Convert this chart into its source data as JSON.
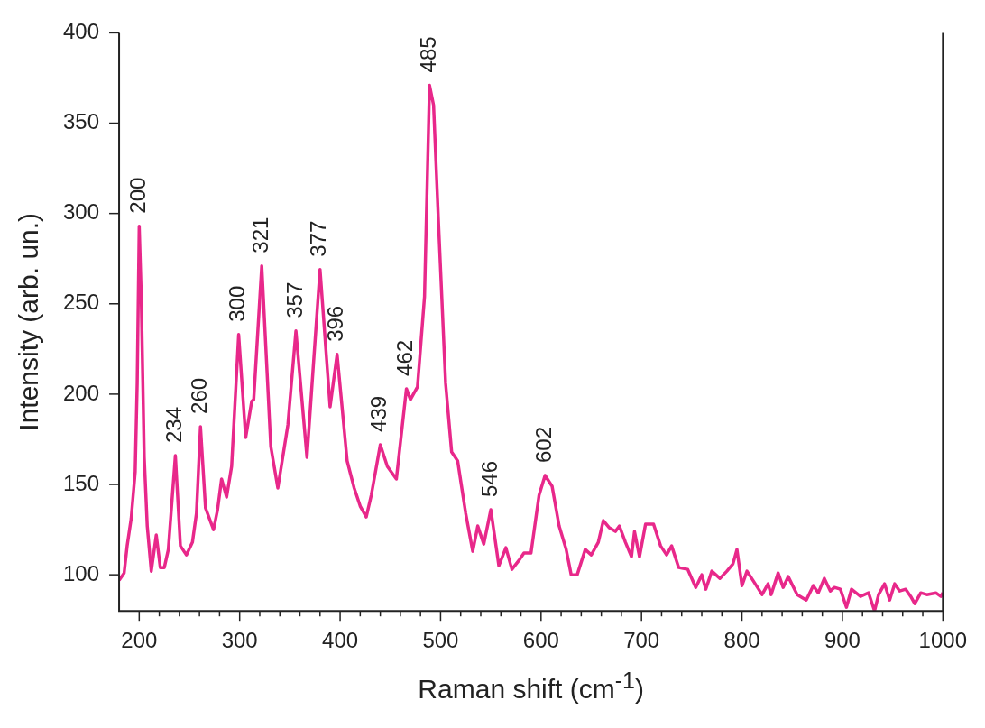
{
  "chart_data": {
    "type": "line",
    "xlabel": "Raman shift (cm$^{-1}$)",
    "ylabel": "Intensity (arb. un.)",
    "xlim": [
      180,
      1000
    ],
    "ylim": [
      80,
      400
    ],
    "xticks": [
      {
        "value": 200,
        "label": "200"
      },
      {
        "value": 220,
        "label": null
      },
      {
        "value": 240,
        "label": null
      },
      {
        "value": 260,
        "label": null
      },
      {
        "value": 280,
        "label": null
      },
      {
        "value": 300,
        "label": "300"
      },
      {
        "value": 320,
        "label": null
      },
      {
        "value": 340,
        "label": null
      },
      {
        "value": 360,
        "label": null
      },
      {
        "value": 380,
        "label": null
      },
      {
        "value": 400,
        "label": "400"
      },
      {
        "value": 420,
        "label": null
      },
      {
        "value": 440,
        "label": null
      },
      {
        "value": 460,
        "label": null
      },
      {
        "value": 480,
        "label": null
      },
      {
        "value": 500,
        "label": "500"
      },
      {
        "value": 520,
        "label": null
      },
      {
        "value": 540,
        "label": null
      },
      {
        "value": 560,
        "label": null
      },
      {
        "value": 580,
        "label": null
      },
      {
        "value": 600,
        "label": "600"
      },
      {
        "value": 620,
        "label": null
      },
      {
        "value": 640,
        "label": null
      },
      {
        "value": 660,
        "label": null
      },
      {
        "value": 680,
        "label": null
      },
      {
        "value": 700,
        "label": "700"
      },
      {
        "value": 720,
        "label": null
      },
      {
        "value": 740,
        "label": null
      },
      {
        "value": 760,
        "label": null
      },
      {
        "value": 780,
        "label": null
      },
      {
        "value": 800,
        "label": "800"
      },
      {
        "value": 820,
        "label": null
      },
      {
        "value": 840,
        "label": null
      },
      {
        "value": 860,
        "label": null
      },
      {
        "value": 880,
        "label": null
      },
      {
        "value": 900,
        "label": "900"
      },
      {
        "value": 920,
        "label": null
      },
      {
        "value": 940,
        "label": null
      },
      {
        "value": 960,
        "label": null
      },
      {
        "value": 980,
        "label": null
      },
      {
        "value": 1000,
        "label": "1000"
      }
    ],
    "yticks": [
      100,
      150,
      200,
      250,
      300,
      350,
      400
    ],
    "grid": false,
    "legend": false,
    "marker": "none",
    "line_style": "solid",
    "series": [
      {
        "color": "#e8288a",
        "x": [
          180,
          185,
          188,
          192,
          196,
          198,
          200,
          202,
          205,
          208,
          212,
          217,
          221,
          225,
          229,
          236,
          241,
          247,
          253,
          257,
          261,
          266,
          274,
          278,
          282,
          287,
          292,
          299,
          306,
          312,
          314,
          322,
          331,
          338,
          348,
          356,
          367,
          380,
          390,
          397,
          407,
          414,
          420,
          426,
          431,
          440,
          447,
          456,
          466,
          470,
          477,
          484,
          489,
          493,
          498,
          505,
          511,
          517,
          525,
          532,
          537,
          543,
          550,
          558,
          565,
          571,
          578,
          583,
          590,
          598,
          604,
          611,
          618,
          625,
          630,
          636,
          644,
          650,
          657,
          662,
          668,
          674,
          678,
          684,
          690,
          693,
          698,
          704,
          712,
          719,
          725,
          730,
          737,
          746,
          754,
          760,
          764,
          770,
          778,
          785,
          791,
          795,
          800,
          805,
          812,
          820,
          826,
          829,
          836,
          841,
          846,
          855,
          864,
          871,
          876,
          882,
          888,
          892,
          898,
          904,
          909,
          918,
          926,
          932,
          936,
          942,
          947,
          952,
          957,
          963,
          968,
          972,
          978,
          984,
          993,
          998,
          1000
        ],
        "values": [
          97,
          101,
          116,
          131,
          157,
          206,
          293,
          255,
          165,
          127,
          102,
          122,
          104,
          104,
          114,
          166,
          116,
          111,
          118,
          134,
          182,
          137,
          125,
          136,
          153,
          143,
          160,
          233,
          176,
          196,
          197,
          271,
          171,
          148,
          183,
          235,
          165,
          269,
          193,
          222,
          163,
          148,
          138,
          132,
          144,
          172,
          160,
          153,
          203,
          197,
          204,
          254,
          371,
          360,
          294,
          206,
          168,
          163,
          134,
          113,
          127,
          117,
          136,
          105,
          115,
          103,
          108,
          112,
          112,
          144,
          155,
          149,
          127,
          114,
          100,
          100,
          114,
          111,
          118,
          130,
          126,
          124,
          127,
          118,
          110,
          124,
          110,
          128,
          128,
          116,
          111,
          116,
          104,
          103,
          93,
          100,
          92,
          102,
          98,
          102,
          106,
          114,
          94,
          102,
          96,
          89,
          95,
          89,
          101,
          93,
          99,
          89,
          86,
          94,
          90,
          98,
          91,
          93,
          92,
          82,
          92,
          88,
          90,
          80,
          89,
          95,
          86,
          95,
          91,
          92,
          88,
          84,
          90,
          89,
          90,
          88,
          90
        ]
      }
    ],
    "annotations": [
      {
        "text": "200",
        "x": 200,
        "y": 293
      },
      {
        "text": "234",
        "x": 236,
        "y": 166
      },
      {
        "text": "260",
        "x": 261,
        "y": 182
      },
      {
        "text": "300",
        "x": 299,
        "y": 233
      },
      {
        "text": "321",
        "x": 322,
        "y": 271
      },
      {
        "text": "357",
        "x": 356,
        "y": 235
      },
      {
        "text": "377",
        "x": 380,
        "y": 269
      },
      {
        "text": "396",
        "x": 397,
        "y": 222
      },
      {
        "text": "439",
        "x": 440,
        "y": 172
      },
      {
        "text": "462",
        "x": 466,
        "y": 203
      },
      {
        "text": "485",
        "x": 489,
        "y": 371
      },
      {
        "text": "546",
        "x": 550,
        "y": 136
      },
      {
        "text": "602",
        "x": 604,
        "y": 155
      }
    ]
  }
}
